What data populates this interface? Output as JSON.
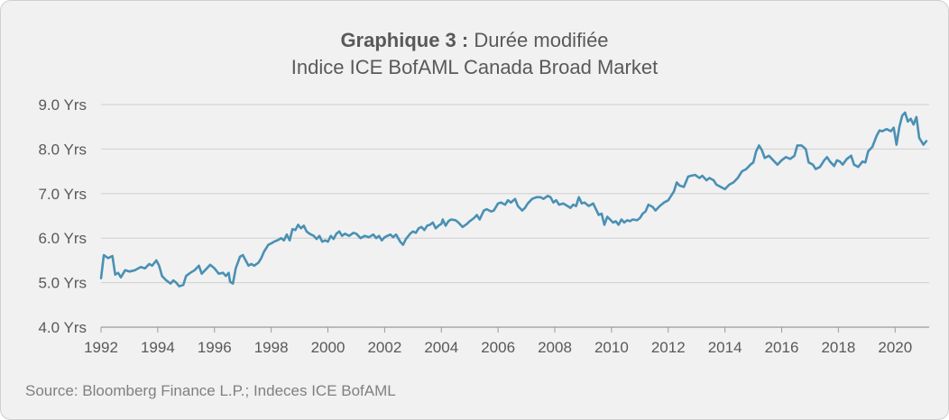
{
  "title_bold": "Graphique 3 :",
  "title_rest": " Durée modifiée",
  "subtitle": "Indice ICE BofAML Canada Broad Market",
  "source": "Source: Bloomberg Finance L.P.; Indeces ICE BofAML",
  "colors": {
    "line": "#4a90b4",
    "grid": "#cfcfcf",
    "axis": "#9a9a9a",
    "text": "#595959",
    "background": "#f1f1f1"
  },
  "chart_data": {
    "type": "line",
    "title": "Graphique 3 : Durée modifiée",
    "subtitle": "Indice ICE BofAML Canada Broad Market",
    "xlabel": "",
    "ylabel": "",
    "xlim": [
      1992,
      2021.2
    ],
    "ylim": [
      4.0,
      9.0
    ],
    "grid": true,
    "legend": "none",
    "yticks": [
      {
        "value": 4.0,
        "label": "4.0 Yrs"
      },
      {
        "value": 5.0,
        "label": "5.0 Yrs"
      },
      {
        "value": 6.0,
        "label": "6.0 Yrs"
      },
      {
        "value": 7.0,
        "label": "7.0 Yrs"
      },
      {
        "value": 8.0,
        "label": "8.0 Yrs"
      },
      {
        "value": 9.0,
        "label": "9.0 Yrs"
      }
    ],
    "xticks": [
      {
        "value": 1992,
        "label": "1992"
      },
      {
        "value": 1994,
        "label": "1994"
      },
      {
        "value": 1996,
        "label": "1996"
      },
      {
        "value": 1998,
        "label": "1998"
      },
      {
        "value": 2000,
        "label": "2000"
      },
      {
        "value": 2002,
        "label": "2002"
      },
      {
        "value": 2004,
        "label": "2004"
      },
      {
        "value": 2006,
        "label": "2006"
      },
      {
        "value": 2008,
        "label": "2008"
      },
      {
        "value": 2010,
        "label": "2010"
      },
      {
        "value": 2012,
        "label": "2012"
      },
      {
        "value": 2014,
        "label": "2014"
      },
      {
        "value": 2016,
        "label": "2016"
      },
      {
        "value": 2018,
        "label": "2018"
      },
      {
        "value": 2020,
        "label": "2020"
      }
    ],
    "series": [
      {
        "values": [
          [
            1992.0,
            5.1
          ],
          [
            1992.1,
            5.62
          ],
          [
            1992.25,
            5.55
          ],
          [
            1992.4,
            5.6
          ],
          [
            1992.5,
            5.18
          ],
          [
            1992.6,
            5.22
          ],
          [
            1992.7,
            5.12
          ],
          [
            1992.85,
            5.28
          ],
          [
            1993.0,
            5.25
          ],
          [
            1993.2,
            5.28
          ],
          [
            1993.4,
            5.35
          ],
          [
            1993.55,
            5.32
          ],
          [
            1993.7,
            5.42
          ],
          [
            1993.8,
            5.38
          ],
          [
            1993.95,
            5.5
          ],
          [
            1994.05,
            5.38
          ],
          [
            1994.15,
            5.15
          ],
          [
            1994.3,
            5.05
          ],
          [
            1994.45,
            4.98
          ],
          [
            1994.55,
            5.05
          ],
          [
            1994.65,
            5.0
          ],
          [
            1994.75,
            4.92
          ],
          [
            1994.9,
            4.95
          ],
          [
            1995.0,
            5.15
          ],
          [
            1995.15,
            5.22
          ],
          [
            1995.3,
            5.28
          ],
          [
            1995.45,
            5.38
          ],
          [
            1995.55,
            5.2
          ],
          [
            1995.7,
            5.3
          ],
          [
            1995.85,
            5.4
          ],
          [
            1996.0,
            5.32
          ],
          [
            1996.15,
            5.2
          ],
          [
            1996.3,
            5.22
          ],
          [
            1996.4,
            5.15
          ],
          [
            1996.5,
            5.22
          ],
          [
            1996.55,
            5.02
          ],
          [
            1996.65,
            4.98
          ],
          [
            1996.75,
            5.32
          ],
          [
            1996.9,
            5.58
          ],
          [
            1997.0,
            5.62
          ],
          [
            1997.1,
            5.5
          ],
          [
            1997.2,
            5.38
          ],
          [
            1997.3,
            5.42
          ],
          [
            1997.4,
            5.38
          ],
          [
            1997.55,
            5.45
          ],
          [
            1997.65,
            5.55
          ],
          [
            1997.75,
            5.7
          ],
          [
            1997.9,
            5.85
          ],
          [
            1998.0,
            5.88
          ],
          [
            1998.1,
            5.92
          ],
          [
            1998.25,
            5.96
          ],
          [
            1998.35,
            6.0
          ],
          [
            1998.45,
            5.95
          ],
          [
            1998.55,
            6.08
          ],
          [
            1998.65,
            5.95
          ],
          [
            1998.75,
            6.2
          ],
          [
            1998.85,
            6.18
          ],
          [
            1998.95,
            6.3
          ],
          [
            1999.05,
            6.22
          ],
          [
            1999.15,
            6.28
          ],
          [
            1999.25,
            6.15
          ],
          [
            1999.35,
            6.1
          ],
          [
            1999.5,
            6.05
          ],
          [
            1999.6,
            5.98
          ],
          [
            1999.7,
            6.05
          ],
          [
            1999.8,
            5.92
          ],
          [
            1999.9,
            5.95
          ],
          [
            2000.0,
            5.92
          ],
          [
            2000.1,
            6.05
          ],
          [
            2000.2,
            5.98
          ],
          [
            2000.3,
            6.1
          ],
          [
            2000.4,
            6.15
          ],
          [
            2000.5,
            6.05
          ],
          [
            2000.6,
            6.1
          ],
          [
            2000.75,
            6.05
          ],
          [
            2000.9,
            6.12
          ],
          [
            2001.0,
            6.1
          ],
          [
            2001.15,
            6.0
          ],
          [
            2001.3,
            6.05
          ],
          [
            2001.45,
            6.02
          ],
          [
            2001.6,
            6.08
          ],
          [
            2001.7,
            6.0
          ],
          [
            2001.8,
            6.05
          ],
          [
            2001.9,
            5.95
          ],
          [
            2002.0,
            6.02
          ],
          [
            2002.1,
            6.05
          ],
          [
            2002.2,
            6.08
          ],
          [
            2002.3,
            6.02
          ],
          [
            2002.4,
            6.08
          ],
          [
            2002.55,
            5.92
          ],
          [
            2002.65,
            5.85
          ],
          [
            2002.75,
            5.98
          ],
          [
            2002.9,
            6.1
          ],
          [
            2003.0,
            6.15
          ],
          [
            2003.1,
            6.12
          ],
          [
            2003.2,
            6.22
          ],
          [
            2003.3,
            6.25
          ],
          [
            2003.4,
            6.18
          ],
          [
            2003.5,
            6.28
          ],
          [
            2003.6,
            6.3
          ],
          [
            2003.7,
            6.35
          ],
          [
            2003.8,
            6.22
          ],
          [
            2003.9,
            6.28
          ],
          [
            2004.0,
            6.32
          ],
          [
            2004.05,
            6.42
          ],
          [
            2004.15,
            6.28
          ],
          [
            2004.25,
            6.38
          ],
          [
            2004.35,
            6.42
          ],
          [
            2004.5,
            6.4
          ],
          [
            2004.6,
            6.35
          ],
          [
            2004.75,
            6.25
          ],
          [
            2004.9,
            6.32
          ],
          [
            2005.0,
            6.38
          ],
          [
            2005.15,
            6.45
          ],
          [
            2005.25,
            6.52
          ],
          [
            2005.35,
            6.42
          ],
          [
            2005.5,
            6.62
          ],
          [
            2005.6,
            6.65
          ],
          [
            2005.75,
            6.6
          ],
          [
            2005.85,
            6.62
          ],
          [
            2006.0,
            6.78
          ],
          [
            2006.1,
            6.8
          ],
          [
            2006.25,
            6.75
          ],
          [
            2006.35,
            6.85
          ],
          [
            2006.45,
            6.8
          ],
          [
            2006.6,
            6.88
          ],
          [
            2006.7,
            6.72
          ],
          [
            2006.85,
            6.62
          ],
          [
            2006.95,
            6.68
          ],
          [
            2007.05,
            6.78
          ],
          [
            2007.2,
            6.88
          ],
          [
            2007.35,
            6.92
          ],
          [
            2007.5,
            6.92
          ],
          [
            2007.6,
            6.88
          ],
          [
            2007.75,
            6.95
          ],
          [
            2007.85,
            6.92
          ],
          [
            2007.95,
            6.8
          ],
          [
            2008.05,
            6.85
          ],
          [
            2008.15,
            6.75
          ],
          [
            2008.3,
            6.78
          ],
          [
            2008.45,
            6.72
          ],
          [
            2008.55,
            6.68
          ],
          [
            2008.65,
            6.75
          ],
          [
            2008.75,
            6.72
          ],
          [
            2008.85,
            6.92
          ],
          [
            2008.95,
            6.78
          ],
          [
            2009.05,
            6.8
          ],
          [
            2009.2,
            6.72
          ],
          [
            2009.35,
            6.78
          ],
          [
            2009.45,
            6.65
          ],
          [
            2009.55,
            6.52
          ],
          [
            2009.65,
            6.55
          ],
          [
            2009.75,
            6.3
          ],
          [
            2009.85,
            6.48
          ],
          [
            2009.95,
            6.42
          ],
          [
            2010.05,
            6.35
          ],
          [
            2010.15,
            6.38
          ],
          [
            2010.25,
            6.3
          ],
          [
            2010.35,
            6.42
          ],
          [
            2010.45,
            6.35
          ],
          [
            2010.55,
            6.4
          ],
          [
            2010.65,
            6.38
          ],
          [
            2010.75,
            6.42
          ],
          [
            2010.9,
            6.4
          ],
          [
            2011.0,
            6.45
          ],
          [
            2011.1,
            6.55
          ],
          [
            2011.2,
            6.6
          ],
          [
            2011.3,
            6.75
          ],
          [
            2011.45,
            6.7
          ],
          [
            2011.55,
            6.62
          ],
          [
            2011.7,
            6.72
          ],
          [
            2011.85,
            6.8
          ],
          [
            2012.0,
            6.85
          ],
          [
            2012.1,
            6.95
          ],
          [
            2012.2,
            7.05
          ],
          [
            2012.3,
            7.25
          ],
          [
            2012.4,
            7.18
          ],
          [
            2012.55,
            7.15
          ],
          [
            2012.7,
            7.38
          ],
          [
            2012.8,
            7.4
          ],
          [
            2012.95,
            7.42
          ],
          [
            2013.1,
            7.35
          ],
          [
            2013.2,
            7.4
          ],
          [
            2013.35,
            7.3
          ],
          [
            2013.45,
            7.35
          ],
          [
            2013.6,
            7.3
          ],
          [
            2013.7,
            7.2
          ],
          [
            2013.85,
            7.15
          ],
          [
            2014.0,
            7.1
          ],
          [
            2014.15,
            7.2
          ],
          [
            2014.3,
            7.25
          ],
          [
            2014.45,
            7.35
          ],
          [
            2014.6,
            7.5
          ],
          [
            2014.75,
            7.55
          ],
          [
            2014.9,
            7.65
          ],
          [
            2015.0,
            7.7
          ],
          [
            2015.1,
            7.95
          ],
          [
            2015.2,
            8.08
          ],
          [
            2015.3,
            7.98
          ],
          [
            2015.4,
            7.8
          ],
          [
            2015.55,
            7.85
          ],
          [
            2015.7,
            7.75
          ],
          [
            2015.85,
            7.65
          ],
          [
            2016.0,
            7.75
          ],
          [
            2016.15,
            7.82
          ],
          [
            2016.3,
            7.78
          ],
          [
            2016.45,
            7.85
          ],
          [
            2016.55,
            8.08
          ],
          [
            2016.7,
            8.08
          ],
          [
            2016.85,
            8.0
          ],
          [
            2016.95,
            7.7
          ],
          [
            2017.1,
            7.65
          ],
          [
            2017.2,
            7.55
          ],
          [
            2017.35,
            7.6
          ],
          [
            2017.5,
            7.75
          ],
          [
            2017.6,
            7.82
          ],
          [
            2017.7,
            7.72
          ],
          [
            2017.85,
            7.62
          ],
          [
            2017.95,
            7.75
          ],
          [
            2018.05,
            7.72
          ],
          [
            2018.15,
            7.65
          ],
          [
            2018.3,
            7.78
          ],
          [
            2018.45,
            7.85
          ],
          [
            2018.55,
            7.65
          ],
          [
            2018.7,
            7.6
          ],
          [
            2018.85,
            7.72
          ],
          [
            2018.95,
            7.7
          ],
          [
            2019.05,
            7.95
          ],
          [
            2019.2,
            8.05
          ],
          [
            2019.35,
            8.3
          ],
          [
            2019.45,
            8.42
          ],
          [
            2019.55,
            8.4
          ],
          [
            2019.7,
            8.45
          ],
          [
            2019.85,
            8.4
          ],
          [
            2019.95,
            8.48
          ],
          [
            2020.05,
            8.1
          ],
          [
            2020.15,
            8.5
          ],
          [
            2020.25,
            8.75
          ],
          [
            2020.35,
            8.82
          ],
          [
            2020.45,
            8.62
          ],
          [
            2020.55,
            8.68
          ],
          [
            2020.65,
            8.55
          ],
          [
            2020.75,
            8.72
          ],
          [
            2020.85,
            8.25
          ],
          [
            2021.0,
            8.1
          ],
          [
            2021.1,
            8.18
          ]
        ]
      }
    ]
  }
}
